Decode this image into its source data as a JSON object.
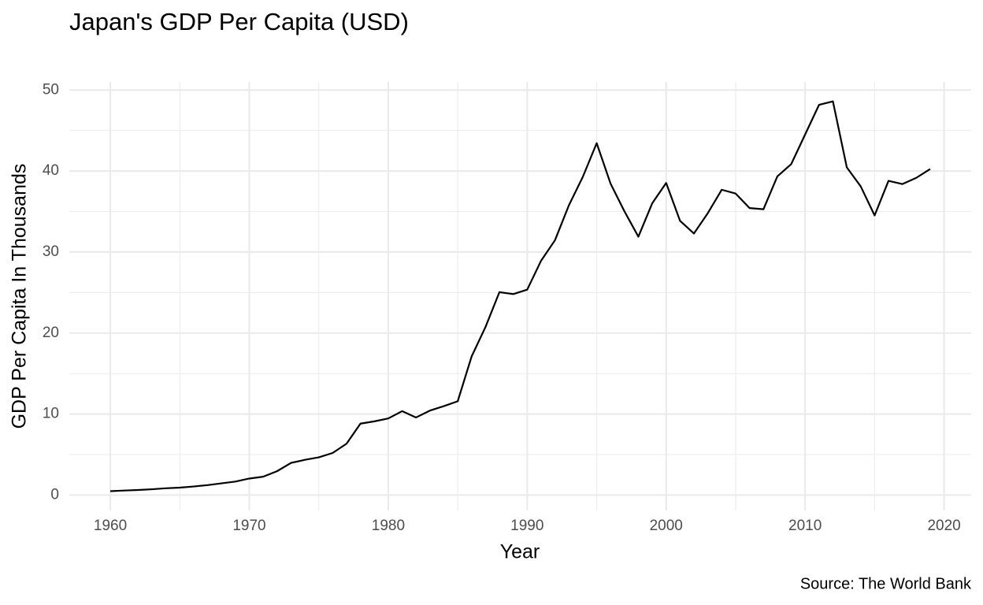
{
  "chart_data": {
    "type": "line",
    "title": "Japan's GDP Per Capita (USD)",
    "xlabel": "Year",
    "ylabel": "GDP Per Capita In Thousands",
    "caption": "Source: The World Bank",
    "x": [
      1960,
      1961,
      1962,
      1963,
      1964,
      1965,
      1966,
      1967,
      1968,
      1969,
      1970,
      1971,
      1972,
      1973,
      1974,
      1975,
      1976,
      1977,
      1978,
      1979,
      1980,
      1981,
      1982,
      1983,
      1984,
      1985,
      1986,
      1987,
      1988,
      1989,
      1990,
      1991,
      1992,
      1993,
      1994,
      1995,
      1996,
      1997,
      1998,
      1999,
      2000,
      2001,
      2002,
      2003,
      2004,
      2005,
      2006,
      2007,
      2008,
      2009,
      2010,
      2011,
      2012,
      2013,
      2014,
      2015,
      2016,
      2017,
      2018,
      2019
    ],
    "series": [
      {
        "color": "#000000",
        "values": [
          0.48,
          0.56,
          0.63,
          0.72,
          0.84,
          0.92,
          1.06,
          1.23,
          1.45,
          1.67,
          2.04,
          2.27,
          2.95,
          3.97,
          4.35,
          4.66,
          5.2,
          6.34,
          8.82,
          9.1,
          9.46,
          10.36,
          9.58,
          10.43,
          10.98,
          11.58,
          17.11,
          20.75,
          25.05,
          24.81,
          25.36,
          28.93,
          31.46,
          35.77,
          39.27,
          43.44,
          38.44,
          35.02,
          31.9,
          36.03,
          38.53,
          33.85,
          32.29,
          34.81,
          37.69,
          37.22,
          35.43,
          35.28,
          39.34,
          40.86,
          44.51,
          48.17,
          48.6,
          40.45,
          38.11,
          34.52,
          38.79,
          38.39,
          39.16,
          40.25
        ]
      }
    ],
    "xlim": [
      1957.05,
      2021.95
    ],
    "xticks": [
      1960,
      1970,
      1980,
      1990,
      2000,
      2010,
      2020
    ],
    "xminorticks": [
      1965,
      1975,
      1985,
      1995,
      2005,
      2015
    ],
    "ylim": [
      -1.9,
      51
    ],
    "yticks": [
      0,
      10,
      20,
      30,
      40,
      50
    ],
    "yminorticks": [
      5,
      15,
      25,
      35,
      45
    ],
    "grid": true
  }
}
